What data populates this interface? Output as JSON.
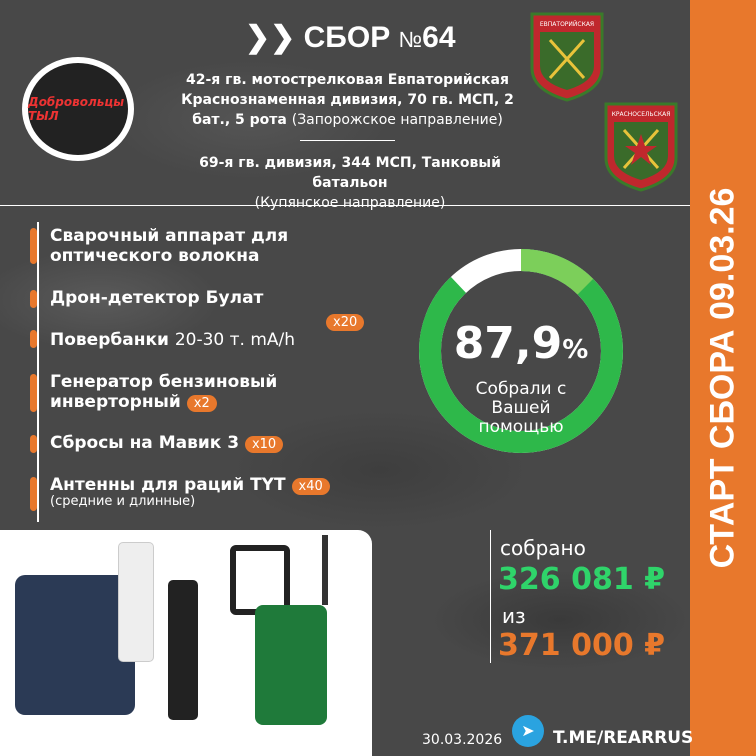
{
  "header": {
    "title": "СБОР",
    "number_prefix": "№",
    "number": "64",
    "unit1_bold": "42-я гв. мотострелковая Евпаторийская Краснознаменная дивизия, 70 гв. МСП, 2 бат., 5 рота",
    "unit1_light": "(Запорожское направление)",
    "unit2_bold": "69-я гв. дивизия, 344 МСП, Танковый батальон",
    "unit2_light": "(Купянское направление)"
  },
  "logo": {
    "text": "Добровольцы ТЫЛ"
  },
  "emblems": [
    {
      "text": "ЕВПАТОРИЙСКАЯ"
    },
    {
      "text": "КРАСНОСЕЛЬСКАЯ"
    }
  ],
  "items": [
    {
      "bold": "Сварочный аппарат для оптического волокна",
      "light": "",
      "badge": "",
      "sub": ""
    },
    {
      "bold": "Дрон-детектор Булат",
      "light": "",
      "badge": "",
      "sub": ""
    },
    {
      "bold": "Повербанки",
      "light": "20-30 т. mA/h",
      "badge": "x20",
      "sub": ""
    },
    {
      "bold": "Генератор бензиновый инверторный",
      "light": "",
      "badge": "x2",
      "sub": ""
    },
    {
      "bold": "Сбросы на Мавик 3",
      "light": "",
      "badge": "x10",
      "sub": ""
    },
    {
      "bold": "Антенны для раций TYT",
      "light": "",
      "badge": "x40",
      "sub": "(средние и длинные)"
    }
  ],
  "progress": {
    "percent_value": "87,9",
    "percent_sign": "%",
    "fraction": 0.879,
    "label": "Собрали с Вашей помощью",
    "colors": {
      "main": "#2eb84a",
      "accent": "#7ccf5a",
      "rest": "#ffffff"
    }
  },
  "collected": {
    "label": "собрано",
    "amount": "326 081 ₽",
    "color": "#2fd46a"
  },
  "goal": {
    "label": "из",
    "amount": "371 000 ₽",
    "color": "#e8782c"
  },
  "side_band": {
    "text": "СТАРТ СБОРА 09.03.26",
    "color": "#e8782c"
  },
  "footer": {
    "date": "30.03.2026",
    "link": "T.ME/REARRUS",
    "icon": "telegram-icon"
  }
}
